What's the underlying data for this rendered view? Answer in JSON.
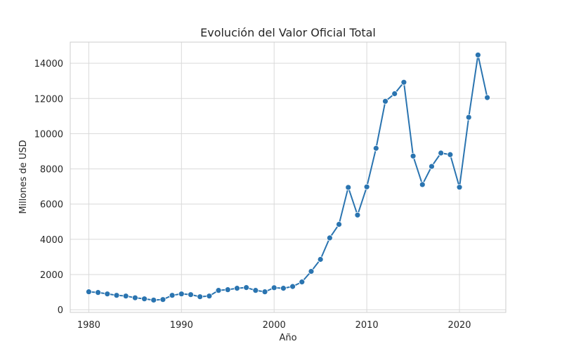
{
  "chart_data": {
    "type": "line",
    "title": "Evolución del Valor Oficial Total",
    "xlabel": "Año",
    "ylabel": "Millones de USD",
    "xlim": [
      1978,
      2025
    ],
    "ylim": [
      -150,
      15200
    ],
    "x_ticks": [
      1980,
      1990,
      2000,
      2010,
      2020
    ],
    "y_ticks": [
      0,
      2000,
      4000,
      6000,
      8000,
      10000,
      12000,
      14000
    ],
    "grid": true,
    "legend": "none",
    "colors": {
      "line": "#2a74b0",
      "grid": "#d9d9d9",
      "frame": "#cccccc",
      "text": "#262626"
    },
    "series": [
      {
        "x": [
          1980,
          1981,
          1982,
          1983,
          1984,
          1985,
          1986,
          1987,
          1988,
          1989,
          1990,
          1991,
          1992,
          1993,
          1994,
          1995,
          1996,
          1997,
          1998,
          1999,
          2000,
          2001,
          2002,
          2003,
          2004,
          2005,
          2006,
          2007,
          2008,
          2009,
          2010,
          2011,
          2012,
          2013,
          2014,
          2015,
          2016,
          2017,
          2018,
          2019,
          2020,
          2021,
          2022,
          2023
        ],
        "y": [
          1020,
          980,
          900,
          820,
          780,
          680,
          620,
          550,
          580,
          820,
          900,
          860,
          740,
          780,
          1100,
          1140,
          1220,
          1260,
          1100,
          1020,
          1250,
          1220,
          1320,
          1580,
          2180,
          2860,
          4080,
          4850,
          6950,
          5380,
          6980,
          9170,
          11840,
          12270,
          12920,
          8730,
          7110,
          8140,
          8900,
          8810,
          6960,
          10930,
          14470,
          12050
        ]
      }
    ]
  }
}
